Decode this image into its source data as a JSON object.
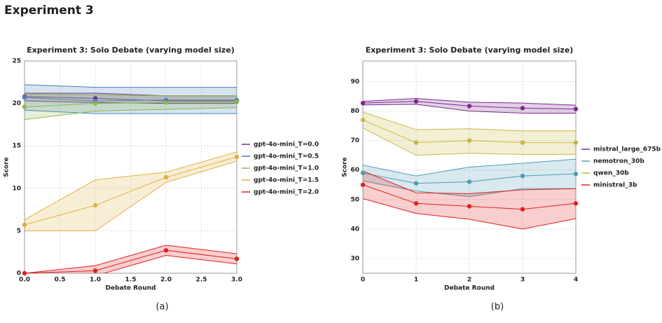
{
  "heading": "Experiment 3",
  "chart_data": [
    {
      "type": "line",
      "title": "Experiment 3: Solo Debate (varying model size)",
      "caption": "(a)",
      "x_label": "Debate Round",
      "y_label": "Score",
      "x": [
        0,
        1,
        2,
        3
      ],
      "xlim": [
        0,
        3
      ],
      "xticks": [
        {
          "value": 0,
          "label": "0.0"
        },
        0.5,
        {
          "value": 1,
          "label": "1.0"
        },
        1.5,
        {
          "value": 2,
          "label": "2.0"
        },
        2.5,
        {
          "value": 3,
          "label": "3.0"
        }
      ],
      "ylim": [
        0,
        25
      ],
      "yticks": [
        0,
        5,
        10,
        15,
        20,
        25
      ],
      "grid": true,
      "series": [
        {
          "name": "gpt-4o-mini_T=0.0",
          "color": "#7b2a8e",
          "values": [
            20.8,
            20.6,
            20.3,
            20.3
          ],
          "lower": [
            20.3,
            20.1,
            20.0,
            20.0
          ],
          "upper": [
            21.2,
            21.2,
            20.9,
            20.9
          ]
        },
        {
          "name": "gpt-4o-mini_T=0.5",
          "color": "#4a7fc1",
          "values": [
            20.7,
            20.3,
            20.4,
            20.4
          ],
          "lower": [
            19.2,
            18.8,
            18.8,
            18.8
          ],
          "upper": [
            22.2,
            21.9,
            21.9,
            21.9
          ]
        },
        {
          "name": "gpt-4o-mini_T=1.0",
          "color": "#8ab84a",
          "values": [
            19.6,
            20.0,
            20.1,
            20.2
          ],
          "lower": [
            18.1,
            19.1,
            19.3,
            19.5
          ],
          "upper": [
            21.1,
            21.0,
            20.9,
            20.9
          ]
        },
        {
          "name": "gpt-4o-mini_T=1.5",
          "color": "#e0b040",
          "values": [
            5.7,
            8.0,
            11.3,
            13.7
          ],
          "lower": [
            5.0,
            5.0,
            10.7,
            13.2
          ],
          "upper": [
            6.3,
            11.0,
            11.9,
            14.3
          ]
        },
        {
          "name": "gpt-4o-mini_T=2.0",
          "color": "#e02020",
          "values": [
            0.0,
            0.3,
            2.7,
            1.7
          ],
          "lower": [
            0.0,
            -0.3,
            2.1,
            1.1
          ],
          "upper": [
            0.0,
            0.9,
            3.3,
            2.3
          ]
        }
      ]
    },
    {
      "type": "line",
      "title": "Experiment 3: Solo Debate (varying model size)",
      "caption": "(b)",
      "x_label": "Debate Round",
      "y_label": "Score",
      "x": [
        0,
        1,
        2,
        3,
        4
      ],
      "xlim": [
        0,
        4
      ],
      "xticks": [
        0,
        1,
        2,
        3,
        4
      ],
      "ylim": [
        25,
        97
      ],
      "yticks": [
        30,
        40,
        50,
        60,
        70,
        80,
        90
      ],
      "grid": true,
      "series": [
        {
          "name": "mistral_large_675b",
          "color": "#7b2a8e",
          "values": [
            82.7,
            83.3,
            81.7,
            81.0,
            80.7
          ],
          "lower": [
            82.1,
            82.3,
            80.0,
            79.3,
            79.3
          ],
          "upper": [
            83.3,
            84.3,
            83.0,
            82.7,
            82.0
          ]
        },
        {
          "name": "nemotron_30b",
          "color": "#4c9cb8",
          "values": [
            59.0,
            55.5,
            56.0,
            58.0,
            58.7
          ],
          "lower": [
            56.3,
            52.9,
            51.0,
            53.7,
            53.7
          ],
          "upper": [
            61.7,
            58.0,
            61.0,
            62.3,
            63.7
          ]
        },
        {
          "name": "qwen_30b",
          "color": "#c8b840",
          "values": [
            77.0,
            69.3,
            70.0,
            69.3,
            69.3
          ],
          "lower": [
            74.3,
            65.0,
            65.7,
            65.3,
            65.3
          ],
          "upper": [
            79.7,
            73.7,
            74.0,
            73.3,
            73.3
          ]
        },
        {
          "name": "ministral_3b",
          "color": "#e02020",
          "values": [
            55.0,
            48.7,
            47.7,
            46.7,
            48.7
          ],
          "lower": [
            50.3,
            45.3,
            43.3,
            40.0,
            43.5
          ],
          "upper": [
            59.7,
            52.3,
            52.0,
            53.3,
            53.7
          ]
        }
      ]
    }
  ]
}
